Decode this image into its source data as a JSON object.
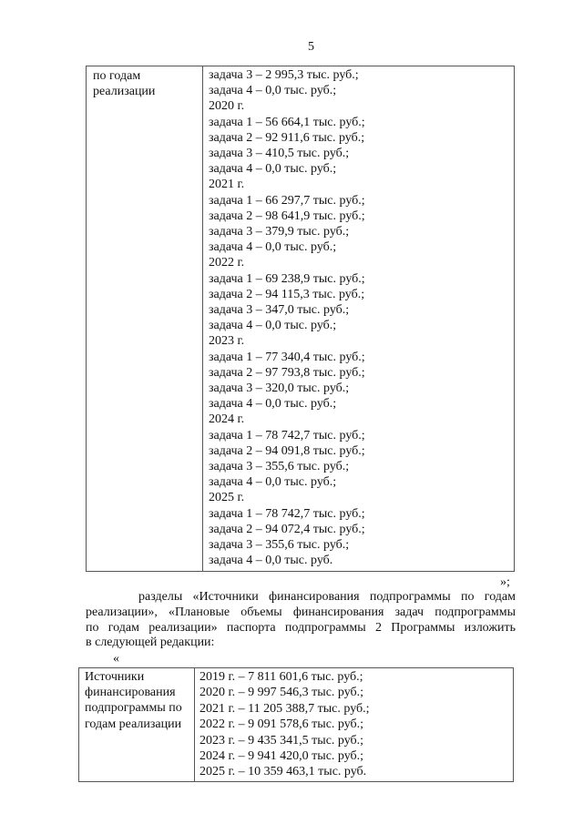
{
  "page_number": "5",
  "table1": {
    "left_cell": [
      "по годам",
      "реализации"
    ],
    "right_lines": [
      "задача 3 – 2 995,3 тыс. руб.;",
      "задача 4 – 0,0 тыс. руб.;",
      "2020 г.",
      "задача 1 – 56 664,1 тыс. руб.;",
      "задача 2 – 92 911,6 тыс. руб.;",
      "задача 3 – 410,5 тыс. руб.;",
      "задача 4 – 0,0 тыс. руб.;",
      "2021 г.",
      "задача 1 – 66 297,7 тыс. руб.;",
      "задача 2 – 98 641,9 тыс. руб.;",
      "задача 3 – 379,9 тыс. руб.;",
      "задача 4 – 0,0 тыс. руб.;",
      "2022 г.",
      "задача 1 – 69 238,9 тыс. руб.;",
      "задача 2 – 94 115,3 тыс. руб.;",
      "задача 3 – 347,0 тыс. руб.;",
      "задача 4 – 0,0 тыс. руб.;",
      "2023 г.",
      "задача 1 – 77 340,4 тыс. руб.;",
      "задача 2 – 97 793,8 тыс. руб.;",
      "задача 3 – 320,0 тыс. руб.;",
      "задача 4 – 0,0 тыс. руб.;",
      "2024 г.",
      "задача 1 – 78 742,7 тыс. руб.;",
      "задача 2 – 94 091,8 тыс. руб.;",
      "задача 3 – 355,6 тыс. руб.;",
      "задача 4 – 0,0 тыс. руб.;",
      "2025 г.",
      "задача 1 – 78 742,7 тыс. руб.;",
      "задача 2 – 94 072,4 тыс. руб.;",
      "задача 3 – 355,6 тыс. руб.;",
      "задача 4 – 0,0 тыс. руб."
    ]
  },
  "closing_quote": "»;",
  "paragraph_lines": [
    "разделы «Источники финансирования подпрограммы по годам",
    "реализации», «Плановые объемы финансирования задач подпрограммы",
    "по годам реализации» паспорта подпрограммы 2 Программы изложить",
    "в следующей редакции:"
  ],
  "opening_quote": "«",
  "table2": {
    "left_cell": [
      "Источники",
      "финансирования",
      "подпрограммы по",
      "годам реализации"
    ],
    "right_lines": [
      "2019 г. – 7 811 601,6 тыс. руб.;",
      "2020 г. – 9 997 546,3 тыс. руб.;",
      "2021 г. – 11 205 388,7 тыс. руб.;",
      "2022 г. – 9 091 578,6 тыс. руб.;",
      "2023 г. – 9 435 341,5 тыс. руб.;",
      "2024 г. – 9 941 420,0 тыс. руб.;",
      "2025 г. – 10 359 463,1 тыс. руб."
    ]
  }
}
